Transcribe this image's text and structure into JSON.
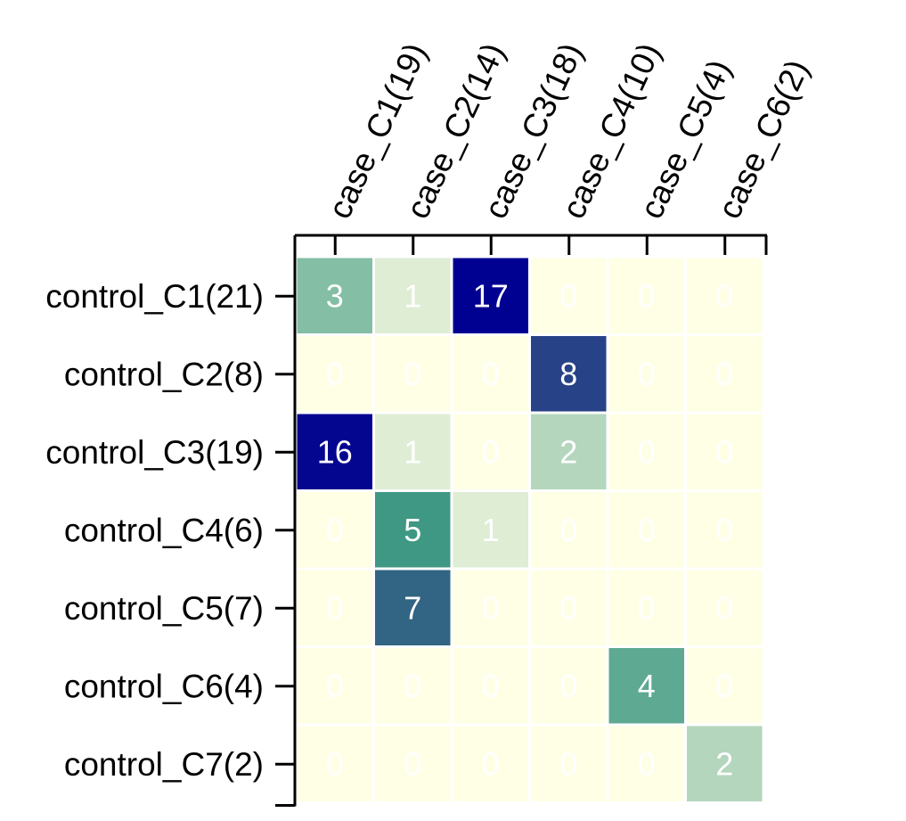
{
  "chart_data": {
    "type": "heatmap",
    "columns": [
      "case_C1(19)",
      "case_C2(14)",
      "case_C3(18)",
      "case_C4(10)",
      "case_C5(4)",
      "case_C6(2)"
    ],
    "rows": [
      "control_C1(21)",
      "control_C2(8)",
      "control_C3(19)",
      "control_C4(6)",
      "control_C5(7)",
      "control_C6(4)",
      "control_C7(2)"
    ],
    "values": [
      [
        3,
        1,
        17,
        0,
        0,
        0
      ],
      [
        0,
        0,
        0,
        8,
        0,
        0
      ],
      [
        16,
        1,
        0,
        2,
        0,
        0
      ],
      [
        0,
        5,
        1,
        0,
        0,
        0
      ],
      [
        0,
        7,
        0,
        0,
        0,
        0
      ],
      [
        0,
        0,
        0,
        0,
        4,
        0
      ],
      [
        0,
        0,
        0,
        0,
        0,
        2
      ]
    ],
    "color_scale": "yellow-green-blue",
    "value_labels": true,
    "legend": "none",
    "grid": false
  }
}
